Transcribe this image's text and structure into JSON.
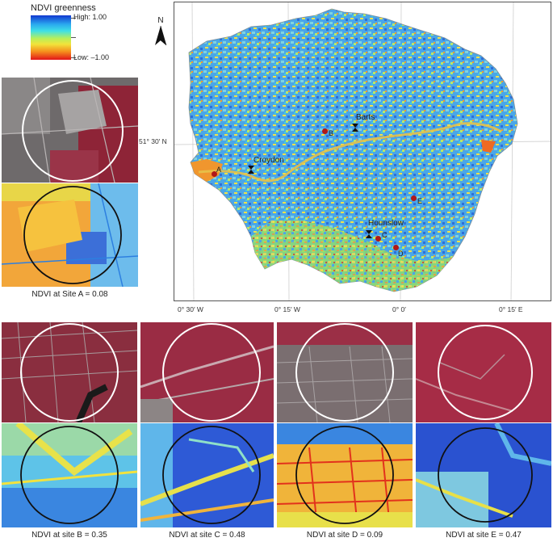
{
  "legend": {
    "title": "NDVI greenness",
    "high_label": "High: 1.00",
    "low_label": "Low: –1.00"
  },
  "map": {
    "north_label": "N",
    "lat_label": "51° 30′ N",
    "lon_labels": [
      "0° 30′ W",
      "0° 15′ W",
      "0° 0′",
      "0° 15′ E"
    ],
    "places": [
      {
        "name": "Barts"
      },
      {
        "name": "Croydon"
      },
      {
        "name": "Hounslow"
      }
    ],
    "sites": [
      {
        "label": "A"
      },
      {
        "label": "B"
      },
      {
        "label": "C"
      },
      {
        "label": "D"
      },
      {
        "label": "E"
      }
    ]
  },
  "captions": {
    "a": "NDVI at Site A = 0.08",
    "b": "NDVI at site B = 0.35",
    "c": "NDVI at site C = 0.48",
    "d": "NDVI at site D = 0.09",
    "e": "NDVI at site E = 0.47"
  },
  "colors": {
    "ndvi_high": "#1238d0",
    "ndvi_mid": "#f2e33a",
    "ndvi_low": "#e2151a",
    "false_color_red": "#8e2437",
    "site_marker": "#b01818"
  }
}
